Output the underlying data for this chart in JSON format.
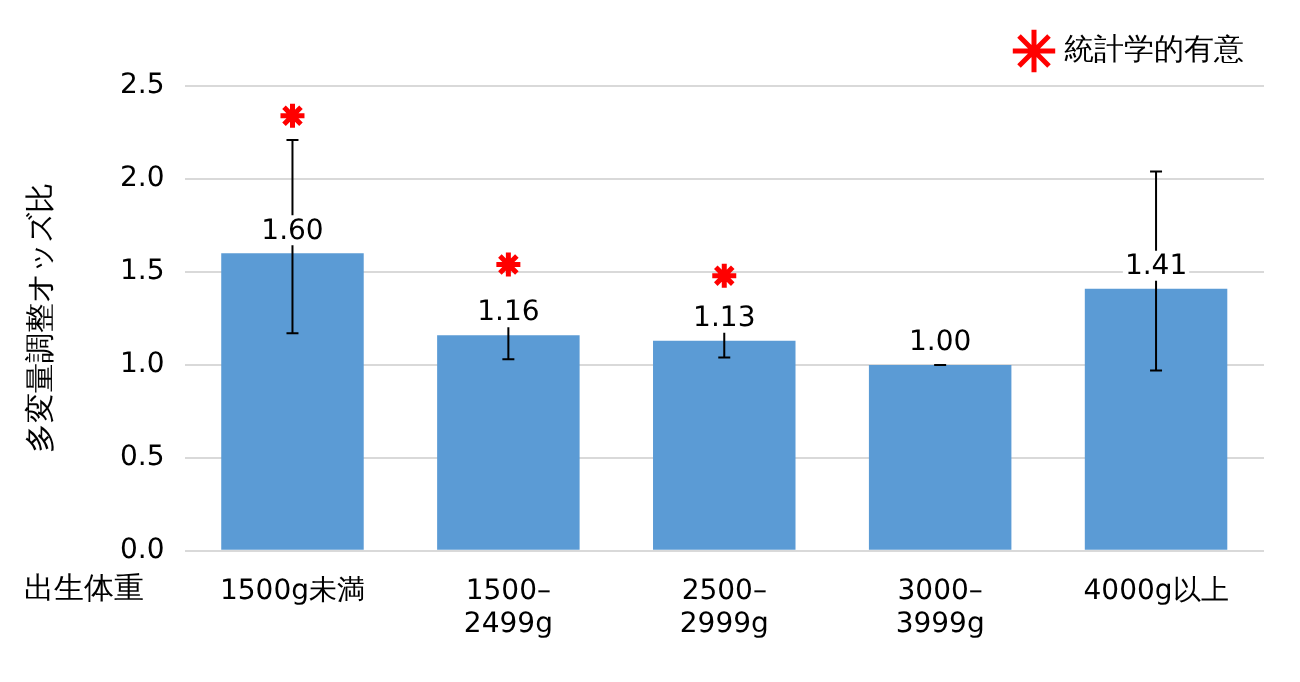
{
  "chart_data": {
    "type": "bar",
    "xlabel": "出生体重",
    "ylabel": "多変量調整オッズ比",
    "categories": [
      "1500g未満",
      "1500–2499g",
      "2500–2999g",
      "3000–3999g",
      "4000g以上"
    ],
    "series": [
      {
        "color": "#5b9bd5",
        "values": [
          1.6,
          1.16,
          1.13,
          1.0,
          1.41
        ],
        "value_labels": [
          "1.60",
          "1.16",
          "1.13",
          "1.00",
          "1.41"
        ],
        "errors": [
          [
            1.17,
            2.21
          ],
          [
            1.03,
            1.3
          ],
          [
            1.04,
            1.21
          ],
          [
            1.0,
            1.0
          ],
          [
            0.97,
            2.04
          ]
        ]
      },
      {
        "type": "scatter",
        "name": "統計学的有意",
        "color": "#ff0000",
        "marker": "cross",
        "x": [
          "1500g未満",
          "1500–2499g",
          "2500–2999g"
        ],
        "values": [
          2.34,
          1.54,
          1.48
        ]
      }
    ],
    "ylim": [
      0,
      2.5
    ],
    "yticks": [
      {
        "value": 0,
        "label": "0.0"
      },
      0.5,
      {
        "value": 1,
        "label": "1.0"
      },
      1.5,
      {
        "value": 2,
        "label": "2.0"
      },
      2.5
    ],
    "grid": "y",
    "legend": "top right"
  }
}
